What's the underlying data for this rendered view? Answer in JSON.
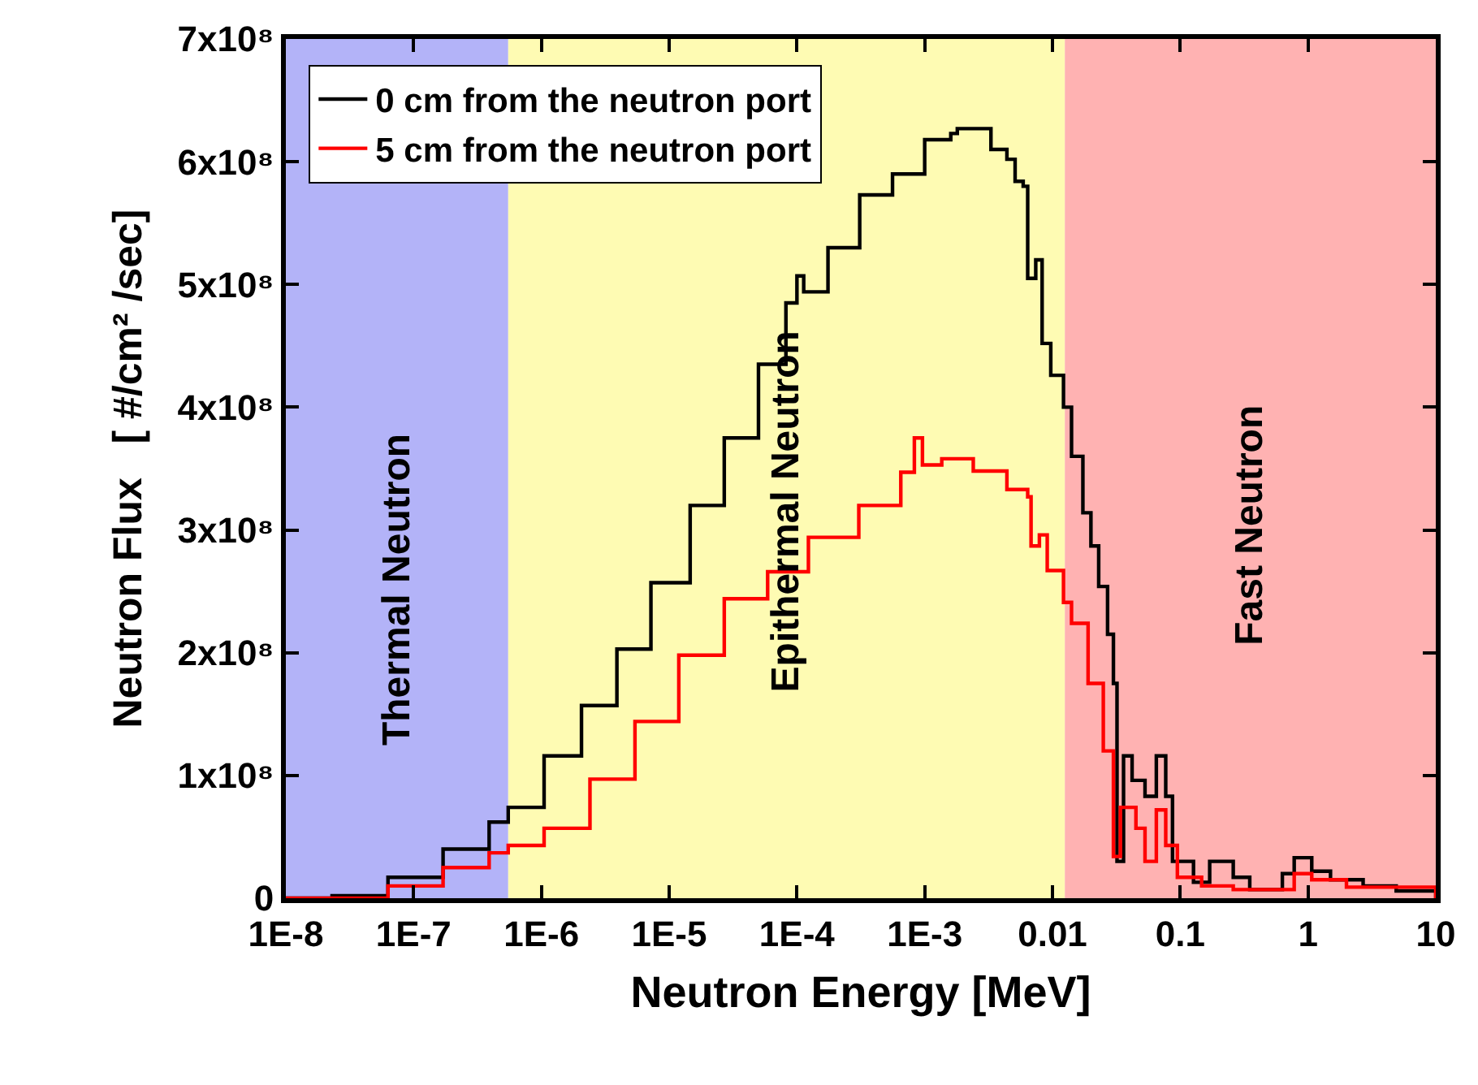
{
  "chart_data": {
    "type": "step",
    "xlabel": "Neutron Energy [MeV]",
    "ylabel": "Neutron Flux   [ #/cm² /sec]",
    "log": "x",
    "xlim": [
      1e-08,
      10
    ],
    "xticks": [
      {
        "value": 1e-08,
        "label": "1E-8"
      },
      {
        "value": 1e-07,
        "label": "1E-7"
      },
      {
        "value": 1e-06,
        "label": "1E-6"
      },
      {
        "value": 1e-05,
        "label": "1E-5"
      },
      {
        "value": 0.0001,
        "label": "1E-4"
      },
      {
        "value": 0.001,
        "label": "1E-3"
      },
      0.01,
      0.1,
      1,
      10
    ],
    "ylim": [
      0,
      700000000
    ],
    "yticks": [
      {
        "value": 0,
        "label": "0"
      },
      {
        "value": 100000000,
        "label": "1x10⁸"
      },
      {
        "value": 200000000,
        "label": "2x10⁸"
      },
      {
        "value": 300000000,
        "label": "3x10⁸"
      },
      {
        "value": 400000000,
        "label": "4x10⁸"
      },
      {
        "value": 500000000,
        "label": "5x10⁸"
      },
      {
        "value": 600000000,
        "label": "6x10⁸"
      },
      {
        "value": 700000000,
        "label": "7x10⁸"
      }
    ],
    "grid": false,
    "legend": "top left",
    "line_style": "solid",
    "marker": "none",
    "bands": [
      {
        "axis": "x",
        "from": 1e-08,
        "to": 5.5e-07,
        "label": "Thermal Neutron",
        "color": "#b3b3f8"
      },
      {
        "axis": "x",
        "from": 5.5e-07,
        "to": 0.0125,
        "label": "Epithermal Neutron",
        "color": "#fefbb3"
      },
      {
        "axis": "x",
        "from": 0.0125,
        "to": 10,
        "label": "Fast Neutron",
        "color": "#ffb2b2"
      }
    ],
    "series": [
      {
        "name": "0 cm from the neutron port",
        "color": "#000000",
        "x": [
          1e-08,
          2.3e-08,
          6.3e-08,
          1.7e-07,
          3.9e-07,
          5.5e-07,
          1.05e-06,
          2.06e-06,
          3.9e-06,
          7.2e-06,
          1.46e-05,
          2.7e-05,
          5e-05,
          8.2e-05,
          0.0001,
          0.000113,
          0.000175,
          0.00031,
          0.00056,
          0.001,
          0.0016,
          0.0018,
          0.0033,
          0.0044,
          0.0051,
          0.0059,
          0.0064,
          0.0074,
          0.0083,
          0.0097,
          0.0122,
          0.0141,
          0.0173,
          0.02,
          0.023,
          0.027,
          0.03,
          0.032,
          0.036,
          0.042,
          0.053,
          0.065,
          0.077,
          0.087,
          0.127,
          0.17,
          0.26,
          0.35,
          0.4,
          0.63,
          0.78,
          1.07,
          1.5,
          2.7,
          4.9,
          10
        ],
        "values": [
          0,
          2000000,
          17000000,
          40000000,
          62000000,
          74000000,
          116000000,
          157000000,
          203000000,
          257000000,
          320000000,
          375000000,
          435000000,
          485000000,
          507000000,
          494000000,
          530000000,
          573000000,
          590000000,
          618000000,
          623000000,
          627000000,
          610000000,
          602000000,
          584000000,
          580000000,
          505000000,
          520000000,
          452000000,
          426000000,
          400000000,
          360000000,
          314000000,
          287000000,
          254000000,
          215000000,
          175000000,
          30000000,
          116000000,
          96000000,
          83000000,
          116000000,
          83000000,
          30000000,
          13000000,
          30000000,
          17000000,
          7000000,
          7000000,
          20000000,
          33000000,
          22000000,
          15000000,
          10000000,
          6000000,
          0
        ]
      },
      {
        "name": "5 cm from the neutron port",
        "color": "#ff0000",
        "x": [
          1e-08,
          6.3e-08,
          1.7e-07,
          3.9e-07,
          5.5e-07,
          1.05e-06,
          2.4e-06,
          5.4e-06,
          1.19e-05,
          2.7e-05,
          5.9e-05,
          0.000123,
          0.000305,
          0.00065,
          0.00083,
          0.00096,
          0.00136,
          0.0024,
          0.0044,
          0.0064,
          0.0068,
          0.0079,
          0.0091,
          0.0122,
          0.0141,
          0.019,
          0.025,
          0.03,
          0.034,
          0.045,
          0.053,
          0.065,
          0.077,
          0.095,
          0.147,
          0.26,
          0.78,
          1.07,
          2.0,
          10
        ],
        "values": [
          0,
          10000000,
          25000000,
          37000000,
          43000000,
          57000000,
          97000000,
          144000000,
          198000000,
          244000000,
          266000000,
          294000000,
          320000000,
          347000000,
          375000000,
          353000000,
          358000000,
          348000000,
          333000000,
          327000000,
          287000000,
          296000000,
          267000000,
          241000000,
          224000000,
          175000000,
          120000000,
          34000000,
          74000000,
          57000000,
          30000000,
          72000000,
          43000000,
          17000000,
          10000000,
          7000000,
          20000000,
          15000000,
          9000000,
          0
        ]
      }
    ]
  }
}
